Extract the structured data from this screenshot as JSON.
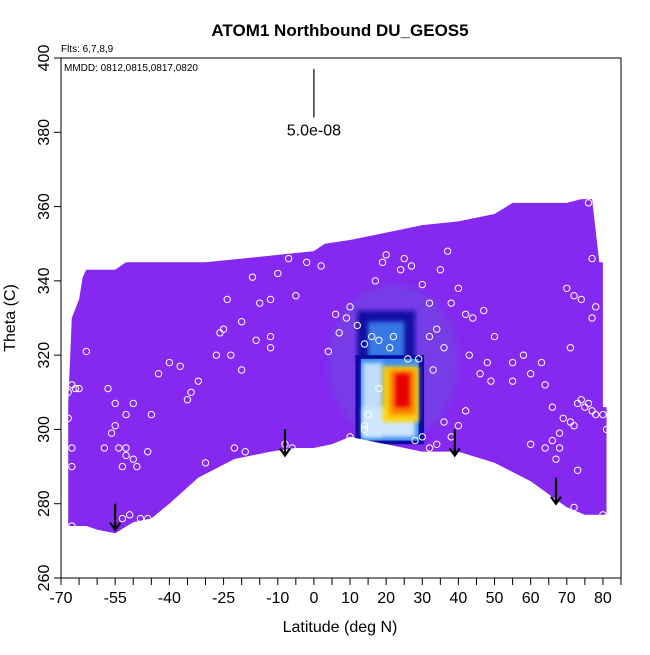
{
  "chart_data": {
    "type": "heatmap",
    "title": "ATOM1 Northbound DU_GEOS5",
    "xlabel": "Latitude (deg N)",
    "ylabel": "Theta (C)",
    "xlim": [
      -70,
      85
    ],
    "ylim": [
      260,
      400
    ],
    "x_ticks_major": [
      -70,
      -55,
      -40,
      -25,
      -10,
      0,
      10,
      20,
      30,
      40,
      50,
      60,
      70,
      80
    ],
    "x_ticks_minor": [
      -65,
      -60,
      -50,
      -45,
      -35,
      -30,
      -20,
      -15,
      -5,
      5,
      15,
      25,
      35,
      45,
      55,
      65,
      75,
      85
    ],
    "y_ticks": [
      260,
      280,
      300,
      320,
      340,
      360,
      380,
      400
    ],
    "flights_label": "Flts: 6,7,8,9",
    "mmdd_label": "MMDD: 0812,0815,0817,0820",
    "scale_bar": {
      "label": "5.0e-08",
      "lat": 0,
      "theta_top": 397,
      "theta_bottom": 384
    },
    "colors": {
      "background_field": "#8528f0",
      "plume_low": "#0a0aa0",
      "plume_mid": "#3c8cf0",
      "plume_pale": "#cfe6ff",
      "plume_high": "#ffd400",
      "plume_max": "#e60000",
      "sample_marker": "#ffffff",
      "arrow": "#000000"
    },
    "field_upper_boundary": [
      [
        -68,
        307
      ],
      [
        -67,
        330
      ],
      [
        -65,
        335
      ],
      [
        -64,
        341
      ],
      [
        -63,
        343
      ],
      [
        -60,
        343
      ],
      [
        -55,
        343
      ],
      [
        -52,
        345
      ],
      [
        -48,
        345
      ],
      [
        -40,
        345
      ],
      [
        -30,
        345
      ],
      [
        -20,
        346
      ],
      [
        -10,
        347
      ],
      [
        0,
        348
      ],
      [
        3,
        350
      ],
      [
        10,
        351
      ],
      [
        20,
        353
      ],
      [
        30,
        355
      ],
      [
        40,
        356
      ],
      [
        50,
        358
      ],
      [
        55,
        361
      ],
      [
        64,
        361
      ],
      [
        70,
        361
      ],
      [
        74,
        362
      ],
      [
        77,
        362
      ],
      [
        79,
        345
      ],
      [
        80,
        345
      ],
      [
        80,
        306
      ],
      [
        81,
        306
      ],
      [
        81,
        280
      ]
    ],
    "field_lower_boundary": [
      [
        -68,
        274
      ],
      [
        -63,
        274
      ],
      [
        -60,
        273
      ],
      [
        -55,
        272
      ],
      [
        -50,
        275
      ],
      [
        -45,
        276
      ],
      [
        -40,
        280
      ],
      [
        -32,
        287
      ],
      [
        -22,
        292
      ],
      [
        -12,
        294
      ],
      [
        -5,
        295
      ],
      [
        0,
        295
      ],
      [
        5,
        296
      ],
      [
        10,
        298
      ],
      [
        20,
        296
      ],
      [
        30,
        294
      ],
      [
        40,
        294
      ],
      [
        50,
        291
      ],
      [
        60,
        286
      ],
      [
        70,
        279
      ],
      [
        75,
        277
      ],
      [
        81,
        277
      ]
    ],
    "plume_core": {
      "lat_min": 13,
      "lat_max": 30,
      "theta_min": 297,
      "theta_max": 319
    },
    "plume_column": {
      "lat_min": 12,
      "lat_max": 28,
      "theta_min": 318,
      "theta_max": 332
    },
    "plume_max_region": {
      "lat_min": 21,
      "lat_max": 28,
      "theta_min": 304,
      "theta_max": 316
    },
    "sample_points": [
      [
        -67,
        274
      ],
      [
        -67,
        290
      ],
      [
        -67,
        295
      ],
      [
        -68,
        303
      ],
      [
        -68,
        310
      ],
      [
        -67,
        312
      ],
      [
        -66,
        311
      ],
      [
        -65,
        311
      ],
      [
        -63,
        321
      ],
      [
        -58,
        295
      ],
      [
        -56,
        299
      ],
      [
        -55,
        301
      ],
      [
        -54,
        295
      ],
      [
        -52,
        295
      ],
      [
        -53,
        290
      ],
      [
        -52,
        293
      ],
      [
        -50,
        292
      ],
      [
        -49,
        290
      ],
      [
        -46,
        294
      ],
      [
        -46,
        276
      ],
      [
        -53,
        276
      ],
      [
        -51,
        277
      ],
      [
        -48,
        276
      ],
      [
        -45,
        304
      ],
      [
        -52,
        304
      ],
      [
        -50,
        307
      ],
      [
        -55,
        307
      ],
      [
        -57,
        311
      ],
      [
        -43,
        315
      ],
      [
        -40,
        318
      ],
      [
        -37,
        317
      ],
      [
        -34,
        310
      ],
      [
        -32,
        313
      ],
      [
        -35,
        308
      ],
      [
        -30,
        291
      ],
      [
        -27,
        320
      ],
      [
        -26,
        326
      ],
      [
        -25,
        327
      ],
      [
        -23,
        320
      ],
      [
        -20,
        316
      ],
      [
        -16,
        324
      ],
      [
        -12,
        325
      ],
      [
        -12,
        322
      ],
      [
        -8,
        296
      ],
      [
        -6,
        295
      ],
      [
        -22,
        295
      ],
      [
        -19,
        294
      ],
      [
        -24,
        335
      ],
      [
        -20,
        329
      ],
      [
        -17,
        341
      ],
      [
        -15,
        334
      ],
      [
        -12,
        335
      ],
      [
        -10,
        342
      ],
      [
        -5,
        336
      ],
      [
        -7,
        346
      ],
      [
        -2,
        345
      ],
      [
        2,
        344
      ],
      [
        6,
        331
      ],
      [
        4,
        321
      ],
      [
        7,
        326
      ],
      [
        9,
        330
      ],
      [
        10,
        333
      ],
      [
        12,
        328
      ],
      [
        14,
        323
      ],
      [
        16,
        325
      ],
      [
        18,
        324
      ],
      [
        17,
        340
      ],
      [
        19,
        345
      ],
      [
        20,
        347
      ],
      [
        24,
        343
      ],
      [
        25,
        346
      ],
      [
        27,
        344
      ],
      [
        30,
        339
      ],
      [
        32,
        334
      ],
      [
        35,
        343
      ],
      [
        37,
        348
      ],
      [
        38,
        334
      ],
      [
        40,
        338
      ],
      [
        42,
        331
      ],
      [
        44,
        330
      ],
      [
        47,
        332
      ],
      [
        50,
        325
      ],
      [
        49,
        313
      ],
      [
        48,
        318
      ],
      [
        46,
        315
      ],
      [
        43,
        320
      ],
      [
        42,
        305
      ],
      [
        40,
        301
      ],
      [
        38,
        298
      ],
      [
        36,
        302
      ],
      [
        34,
        296
      ],
      [
        32,
        295
      ],
      [
        30,
        298
      ],
      [
        28,
        297
      ],
      [
        26,
        319
      ],
      [
        29,
        319
      ],
      [
        33,
        316
      ],
      [
        36,
        322
      ],
      [
        32,
        325
      ],
      [
        34,
        327
      ],
      [
        22,
        325
      ],
      [
        21,
        322
      ],
      [
        18,
        311
      ],
      [
        15,
        304
      ],
      [
        14,
        301
      ],
      [
        12,
        296
      ],
      [
        10,
        298
      ],
      [
        14,
        300
      ],
      [
        55,
        313
      ],
      [
        55,
        318
      ],
      [
        58,
        320
      ],
      [
        60,
        315
      ],
      [
        63,
        318
      ],
      [
        64,
        312
      ],
      [
        66,
        306
      ],
      [
        67,
        292
      ],
      [
        68,
        295
      ],
      [
        69,
        303
      ],
      [
        71,
        302
      ],
      [
        72,
        301
      ],
      [
        73,
        307
      ],
      [
        74,
        308
      ],
      [
        75,
        306
      ],
      [
        76,
        307
      ],
      [
        77,
        305
      ],
      [
        78,
        304
      ],
      [
        80,
        304
      ],
      [
        81,
        300
      ],
      [
        80,
        277
      ],
      [
        72,
        279
      ],
      [
        70,
        278
      ],
      [
        73,
        289
      ],
      [
        71,
        322
      ],
      [
        74,
        335
      ],
      [
        77,
        330
      ],
      [
        78,
        333
      ],
      [
        77,
        346
      ],
      [
        76,
        361
      ],
      [
        66,
        297
      ],
      [
        68,
        299
      ],
      [
        64,
        295
      ],
      [
        60,
        296
      ],
      [
        72,
        336
      ],
      [
        70,
        338
      ]
    ],
    "arrows": [
      {
        "lat": -55,
        "theta_top": 280,
        "theta_tip": 273
      },
      {
        "lat": -8,
        "theta_top": 300,
        "theta_tip": 293
      },
      {
        "lat": 39,
        "theta_top": 300,
        "theta_tip": 293
      },
      {
        "lat": 67,
        "theta_top": 287,
        "theta_tip": 280
      }
    ]
  }
}
